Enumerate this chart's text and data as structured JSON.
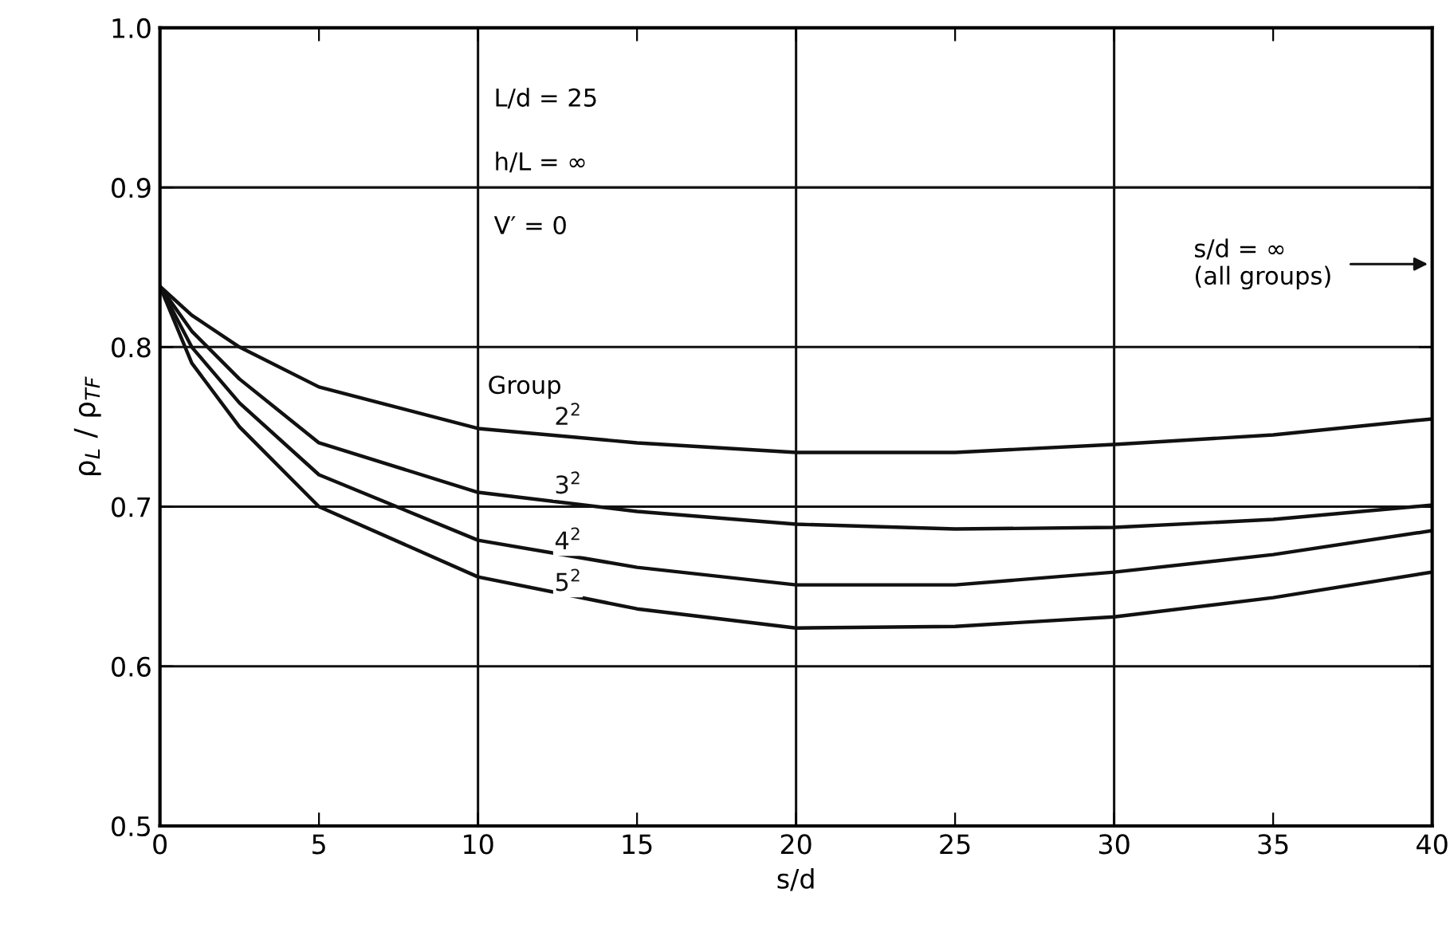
{
  "chart_data": {
    "type": "line",
    "xlabel": "s/d",
    "ylabel": "ρ$_{L}$ / ρ$_{TF}$",
    "x": [
      0,
      1,
      2.5,
      5,
      10,
      15,
      20,
      25,
      30,
      35,
      40
    ],
    "series": [
      {
        "name": "2$^{2}$",
        "color": "#111111",
        "values": [
          0.838,
          0.82,
          0.8,
          0.775,
          0.749,
          0.74,
          0.734,
          0.734,
          0.739,
          0.745,
          0.755
        ]
      },
      {
        "name": "3$^{2}$",
        "color": "#111111",
        "values": [
          0.838,
          0.81,
          0.78,
          0.74,
          0.709,
          0.697,
          0.689,
          0.686,
          0.687,
          0.692,
          0.701
        ]
      },
      {
        "name": "4$^{2}$",
        "color": "#111111",
        "values": [
          0.838,
          0.8,
          0.765,
          0.72,
          0.679,
          0.662,
          0.651,
          0.651,
          0.659,
          0.67,
          0.685
        ]
      },
      {
        "name": "5$^{2}$",
        "color": "#111111",
        "values": [
          0.838,
          0.79,
          0.75,
          0.7,
          0.656,
          0.636,
          0.624,
          0.625,
          0.631,
          0.643,
          0.659
        ]
      }
    ],
    "xlim": [
      0,
      40
    ],
    "ylim": [
      0.5,
      1.0
    ],
    "xticks": [
      0,
      5,
      10,
      15,
      20,
      25,
      30,
      35,
      40
    ],
    "yticks": [
      {
        "value": 0.5,
        "label": "0.5"
      },
      {
        "value": 0.6,
        "label": "0.6"
      },
      {
        "value": 0.7,
        "label": "0.7"
      },
      {
        "value": 0.8,
        "label": "0.8"
      },
      {
        "value": 0.9,
        "label": "0.9"
      },
      {
        "value": 1.0,
        "label": "1.0"
      }
    ],
    "grid": true,
    "marker": "none",
    "line_style": "solid",
    "annotations": [
      "L/d = 25",
      "h/L = ∞",
      "V′ = 0",
      "Group",
      "s/d = ∞\n(all groups)"
    ]
  }
}
